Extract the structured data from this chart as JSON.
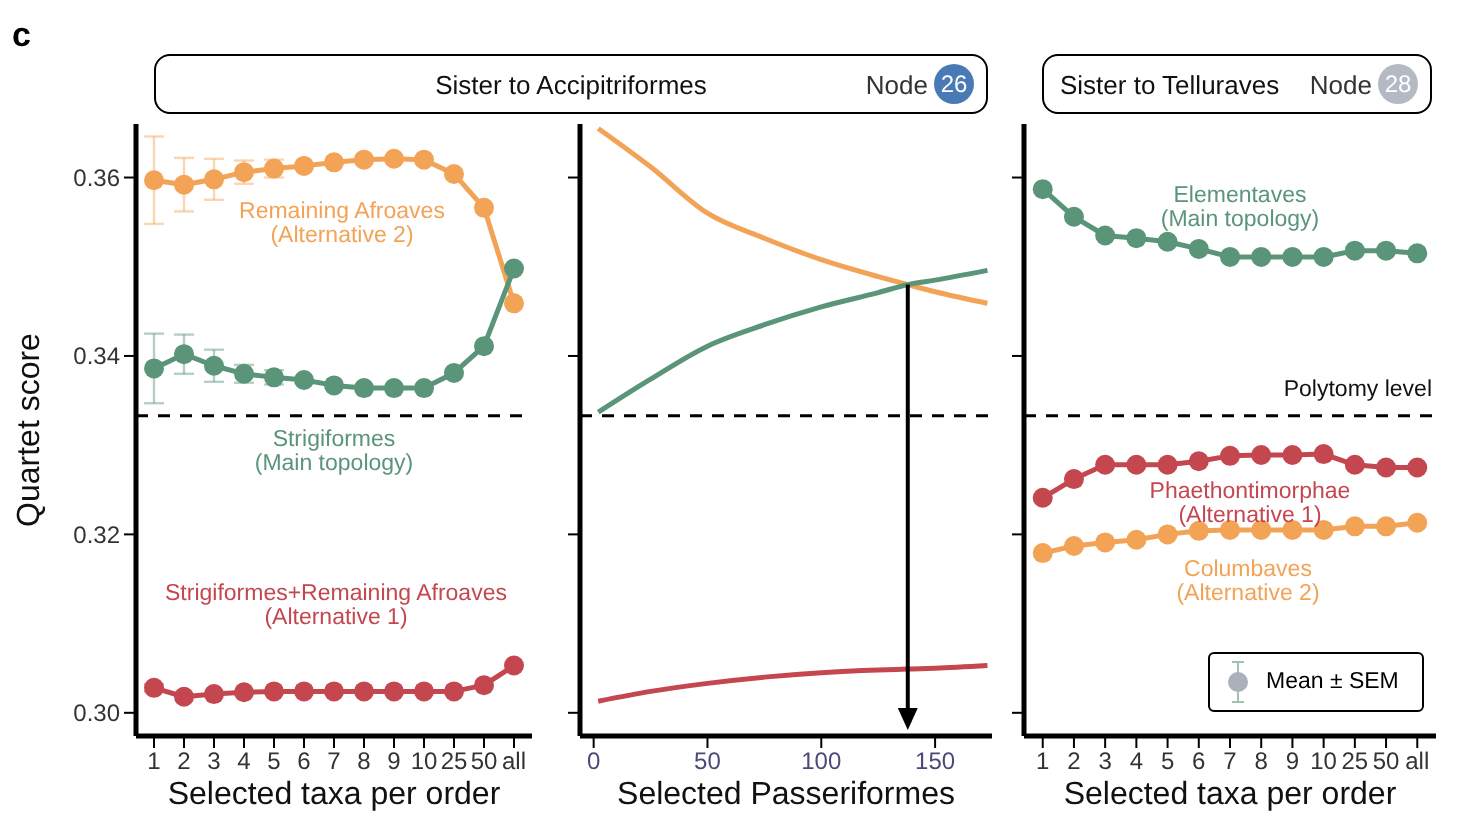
{
  "chart_data": [
    {
      "type": "line",
      "title": "Sister to Accipitriformes",
      "ylabel": "Quartet score",
      "xlabel": "Selected taxa per order",
      "annotations": [
        "c"
      ],
      "categories": [
        "1",
        "2",
        "3",
        "4",
        "5",
        "6",
        "7",
        "8",
        "9",
        "10",
        "25",
        "50",
        "all"
      ],
      "ylim": [
        0.2974,
        0.366
      ],
      "yticks": [
        {
          "value": 0.3,
          "label": "0.30"
        },
        {
          "value": 0.32,
          "label": "0.32"
        },
        {
          "value": 0.34,
          "label": "0.34"
        },
        {
          "value": 0.36,
          "label": "0.36"
        }
      ],
      "marker": "circle",
      "ref_lines": [
        {
          "axis": "y",
          "value": 0.3333,
          "label": null,
          "line_style": "dashed",
          "color": "#000000"
        }
      ],
      "series": [
        {
          "name": "Remaining Afroaves (Alternative 2)",
          "color": "#f3a356",
          "values": [
            0.3597,
            0.3592,
            0.3598,
            0.3606,
            0.361,
            0.3613,
            0.3617,
            0.362,
            0.3621,
            0.362,
            0.3604,
            0.3566,
            0.3459
          ],
          "errors": [
            0.0049,
            0.003,
            0.0023,
            0.0013,
            0.001,
            null,
            null,
            null,
            null,
            null,
            null,
            null,
            null
          ]
        },
        {
          "name": "Strigiformes (Main topology)",
          "color": "#5a9479",
          "values": [
            0.3386,
            0.3402,
            0.3389,
            0.338,
            0.3376,
            0.3373,
            0.3367,
            0.3364,
            0.3364,
            0.3364,
            0.3381,
            0.3411,
            0.3498
          ],
          "errors": [
            0.0039,
            0.0022,
            0.0018,
            0.001,
            0.0008,
            null,
            null,
            null,
            null,
            null,
            null,
            null,
            null
          ]
        },
        {
          "name": "Strigiformes+Remaining Afroaves (Alternative 1)",
          "color": "#c4474f",
          "values": [
            0.3028,
            0.3018,
            0.3021,
            0.3023,
            0.3024,
            0.3024,
            0.3024,
            0.3024,
            0.3024,
            0.3024,
            0.3024,
            0.3031,
            0.3053
          ],
          "errors": [
            0.0004,
            null,
            null,
            null,
            null,
            null,
            null,
            null,
            null,
            null,
            null,
            null,
            null
          ]
        }
      ]
    },
    {
      "type": "line",
      "subtitle": "Node 26",
      "xlabel": "Selected Passeriformes",
      "x": [
        2,
        25,
        50,
        75,
        100,
        125,
        138,
        150,
        173
      ],
      "xlim": [
        -6,
        175
      ],
      "xticks": [
        0,
        50,
        100,
        150
      ],
      "ylim": [
        0.2974,
        0.366
      ],
      "yticks": [
        0.3,
        0.32,
        0.34,
        0.36
      ],
      "tick_labels": "x",
      "marker": "none",
      "ref_lines": [
        {
          "axis": "y",
          "value": 0.3333,
          "label": null,
          "line_style": "dashed",
          "color": "#000000"
        },
        {
          "axis": "x",
          "value": 138,
          "label": null,
          "color": "#000000"
        }
      ],
      "series": [
        {
          "color": "#f3a356",
          "values": [
            0.3655,
            0.3612,
            0.356,
            0.3532,
            0.3508,
            0.3489,
            0.348,
            0.3472,
            0.3459
          ]
        },
        {
          "color": "#5a9479",
          "values": [
            0.3337,
            0.3374,
            0.3411,
            0.3435,
            0.3455,
            0.3471,
            0.348,
            0.3485,
            0.3496
          ]
        },
        {
          "color": "#c4474f",
          "values": [
            0.3013,
            0.3024,
            0.3033,
            0.304,
            0.3045,
            0.3048,
            0.3049,
            0.305,
            0.3053
          ]
        }
      ]
    },
    {
      "type": "line",
      "title": "Sister to Telluraves",
      "subtitle": "Node 28",
      "xlabel": "Selected taxa per order",
      "annotations": [
        "Mean ± SEM"
      ],
      "categories": [
        "1",
        "2",
        "3",
        "4",
        "5",
        "6",
        "7",
        "8",
        "9",
        "10",
        "25",
        "50",
        "all"
      ],
      "ylim": [
        0.2974,
        0.366
      ],
      "yticks": [
        0.3,
        0.32,
        0.34,
        0.36
      ],
      "tick_labels": "x",
      "marker": "circle",
      "ref_lines": [
        {
          "axis": "y",
          "value": 0.3333,
          "label": "Polytomy level",
          "line_style": "dashed",
          "color": "#000000"
        }
      ],
      "series": [
        {
          "name": "Elementaves (Main topology)",
          "color": "#5a9479",
          "values": [
            0.3587,
            0.3556,
            0.3535,
            0.3532,
            0.3528,
            0.352,
            0.3511,
            0.3511,
            0.3511,
            0.3511,
            0.3518,
            0.3518,
            0.3515
          ]
        },
        {
          "name": "Phaethontimorphae (Alternative 1)",
          "color": "#c4474f",
          "values": [
            0.3241,
            0.3262,
            0.3278,
            0.3278,
            0.3278,
            0.3282,
            0.3288,
            0.3289,
            0.3289,
            0.329,
            0.3278,
            0.3275,
            0.3275
          ]
        },
        {
          "name": "Columbaves (Alternative 2)",
          "color": "#f3a356",
          "values": [
            0.3179,
            0.3187,
            0.3191,
            0.3194,
            0.32,
            0.3204,
            0.3205,
            0.3205,
            0.3205,
            0.3205,
            0.3209,
            0.3209,
            0.3213
          ]
        }
      ]
    }
  ]
}
